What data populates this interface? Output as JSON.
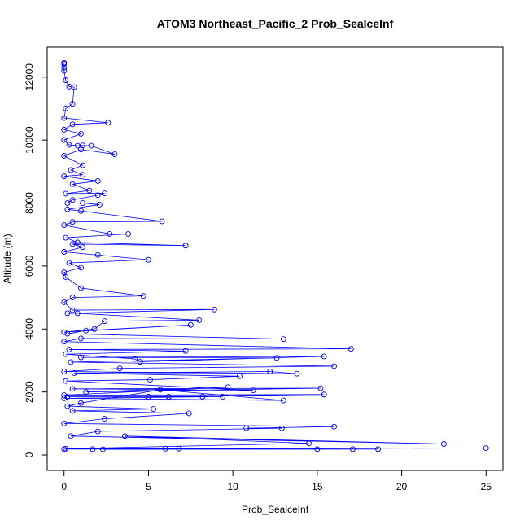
{
  "chart_data": {
    "type": "line",
    "title": "ATOM3 Northeast_Pacific_2 Prob_SealceInf",
    "x_label": "Prob_SealceInf",
    "y_label": "Altitude (m)",
    "color": "#0000ff",
    "markers": true,
    "x": [
      0,
      0,
      0,
      0,
      0.1,
      0.3,
      0.6,
      0.5,
      0.1,
      0,
      2.6,
      0.5,
      0,
      1.0,
      0,
      0.3,
      0.8,
      1.1,
      1.6,
      3.0,
      1.0,
      0,
      1.1,
      0.4,
      1.1,
      0,
      2.0,
      0.5,
      1.5,
      0.1,
      2.4,
      2.0,
      0.5,
      0.2,
      1.1,
      2.1,
      0.2,
      1.0,
      5.8,
      0.5,
      0,
      2.7,
      3.8,
      0.1,
      0.8,
      7.2,
      0.5,
      1.1,
      0,
      2.0,
      5.0,
      0.3,
      1.0,
      0,
      0.1,
      1.0,
      4.7,
      0.5,
      0,
      0.5,
      8.9,
      0.2,
      0.8,
      8.0,
      2.4,
      1.8,
      0,
      7.5,
      1.3,
      0.2,
      13.0,
      1.0,
      0,
      17.0,
      0.3,
      7.2,
      0.1,
      4.2,
      4.5,
      15.4,
      1.0,
      12.6,
      0.4,
      16.0,
      3.3,
      0,
      13.8,
      12.2,
      0.6,
      10.4,
      5.1,
      0.1,
      11.2,
      0.5,
      15.2,
      1.3,
      9.7,
      0,
      15.4,
      5.0,
      0.2,
      6.2,
      8.2,
      9.4,
      0,
      13.0,
      5.7,
      1.0,
      0.2,
      5.3,
      0.5,
      7.4,
      2.4,
      0,
      16.0,
      10.8,
      12.9,
      2.0,
      0.4,
      22.5,
      3.6,
      14.5,
      0.1,
      25,
      6.0,
      17.1,
      1.7,
      18.6,
      2.3,
      15.0,
      6.8,
      0
    ],
    "values": [
      12450,
      12420,
      12300,
      12200,
      11900,
      11700,
      11680,
      11150,
      11000,
      10700,
      10550,
      10500,
      10330,
      10200,
      10000,
      9850,
      9820,
      9830,
      9820,
      9550,
      9700,
      9500,
      9200,
      9050,
      8900,
      8850,
      8700,
      8600,
      8400,
      8300,
      8310,
      8250,
      8100,
      8000,
      8000,
      7950,
      7800,
      7750,
      7420,
      7400,
      7300,
      7020,
      7020,
      6900,
      6750,
      6650,
      6700,
      6600,
      6450,
      6350,
      6200,
      6100,
      5950,
      5800,
      5650,
      5300,
      5050,
      5000,
      4850,
      4600,
      4620,
      4500,
      4500,
      4280,
      4250,
      4000,
      3900,
      4130,
      3950,
      3850,
      3680,
      3700,
      3600,
      3370,
      3350,
      3300,
      3200,
      3050,
      2960,
      3130,
      3100,
      3080,
      2950,
      2820,
      2750,
      2650,
      2580,
      2650,
      2600,
      2500,
      2390,
      2350,
      2050,
      2100,
      2120,
      2000,
      2150,
      1900,
      1920,
      1850,
      1850,
      1850,
      1850,
      1850,
      1800,
      1730,
      2070,
      1650,
      1550,
      1460,
      1400,
      1320,
      1150,
      1000,
      900,
      850,
      850,
      750,
      600,
      350,
      600,
      370,
      200,
      220,
      200,
      185,
      185,
      185,
      180,
      185,
      200,
      185
    ],
    "xlim": [
      -1,
      26
    ],
    "ylim": [
      -490,
      12950
    ],
    "xticks": [
      0,
      5,
      10,
      15,
      20,
      25
    ],
    "yticks": [
      0,
      2000,
      4000,
      6000,
      8000,
      10000,
      12000
    ]
  }
}
